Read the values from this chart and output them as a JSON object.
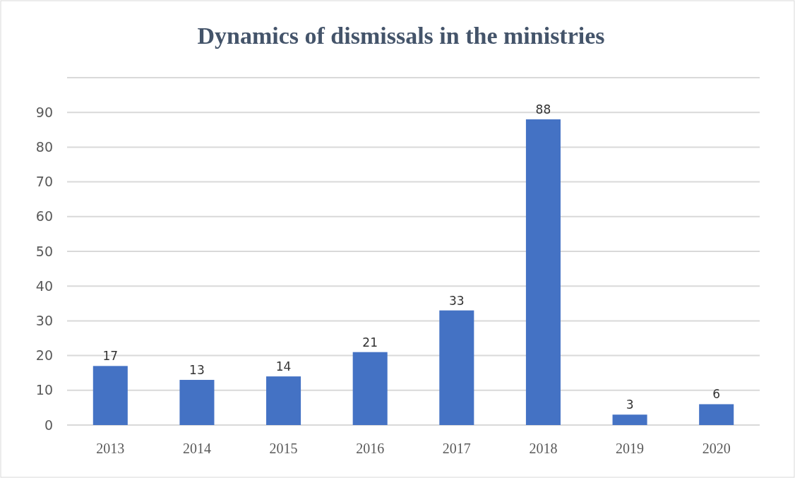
{
  "chart_data": {
    "type": "bar",
    "title": "Dynamics of dismissals in the ministries",
    "categories": [
      "2013",
      "2014",
      "2015",
      "2016",
      "2017",
      "2018",
      "2019",
      "2020"
    ],
    "values": [
      17,
      13,
      14,
      21,
      33,
      88,
      3,
      6
    ],
    "color": "#4472c4",
    "ylim": [
      0,
      100
    ],
    "yticks": [
      0,
      10,
      20,
      30,
      40,
      50,
      60,
      70,
      80,
      90,
      {
        "value": 100,
        "label": null
      }
    ],
    "grid": "y",
    "data_labels": true
  }
}
